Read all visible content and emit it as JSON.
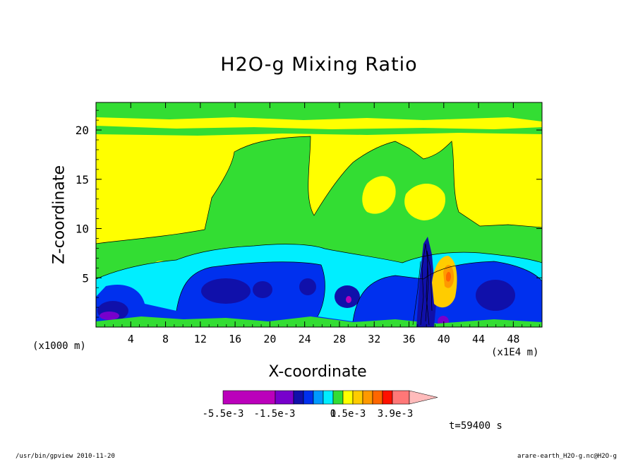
{
  "chart_data": {
    "type": "heatmap",
    "title": "H2O-g Mixing Ratio",
    "xlabel": "X-coordinate",
    "ylabel": "Z-coordinate",
    "x_unit_left": "(x1000 m)",
    "x_unit_right": "(x1E4 m)",
    "x_ticks": [
      "4",
      "8",
      "12",
      "16",
      "20",
      "24",
      "28",
      "32",
      "36",
      "40",
      "44",
      "48"
    ],
    "y_ticks": [
      "5",
      "10",
      "15",
      "20"
    ],
    "xlim": [
      0,
      51.3
    ],
    "ylim": [
      0,
      22.8
    ],
    "grid": false,
    "colorbar": {
      "labels": [
        "-5.5e-3",
        "-1.5e-3",
        "0",
        "1.5e-3",
        "3.9e-3"
      ],
      "colors": [
        "#bb00bb",
        "#7700cc",
        "#1010aa",
        "#0030ee",
        "#0099ff",
        "#00eeff",
        "#33dd33",
        "#ffff00",
        "#ffcc00",
        "#ff9900",
        "#ff6600",
        "#ff1100",
        "#ff7777",
        "#ffbbbb"
      ]
    },
    "time_label": "t=59400 s"
  },
  "footer": {
    "left": "/usr/bin/gpview  2010-11-20",
    "right": "arare-earth_H2O-g.nc@H2O-g"
  }
}
